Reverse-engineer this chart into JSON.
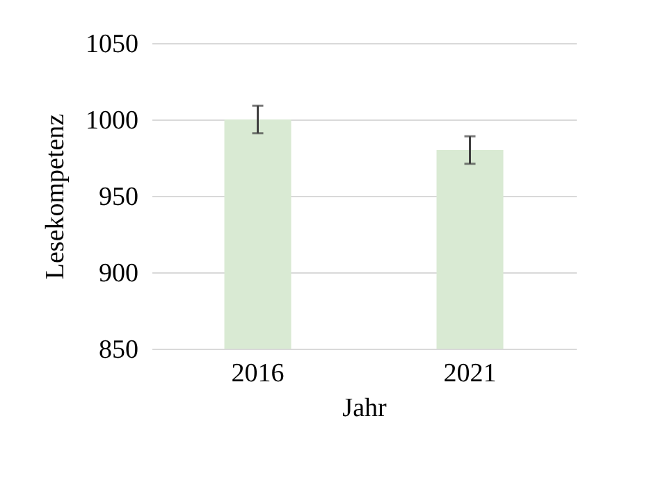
{
  "chart_data": {
    "type": "bar",
    "xlabel": "Jahr",
    "ylabel": "Lesekompetenz",
    "categories": [
      "2016",
      "2021"
    ],
    "values": [
      1000,
      980
    ],
    "errors": [
      9,
      9
    ],
    "color": "#d9ead3",
    "ylim": [
      850,
      1050
    ],
    "yticks": [
      850,
      900,
      950,
      1000,
      1050
    ],
    "grid": "y"
  }
}
